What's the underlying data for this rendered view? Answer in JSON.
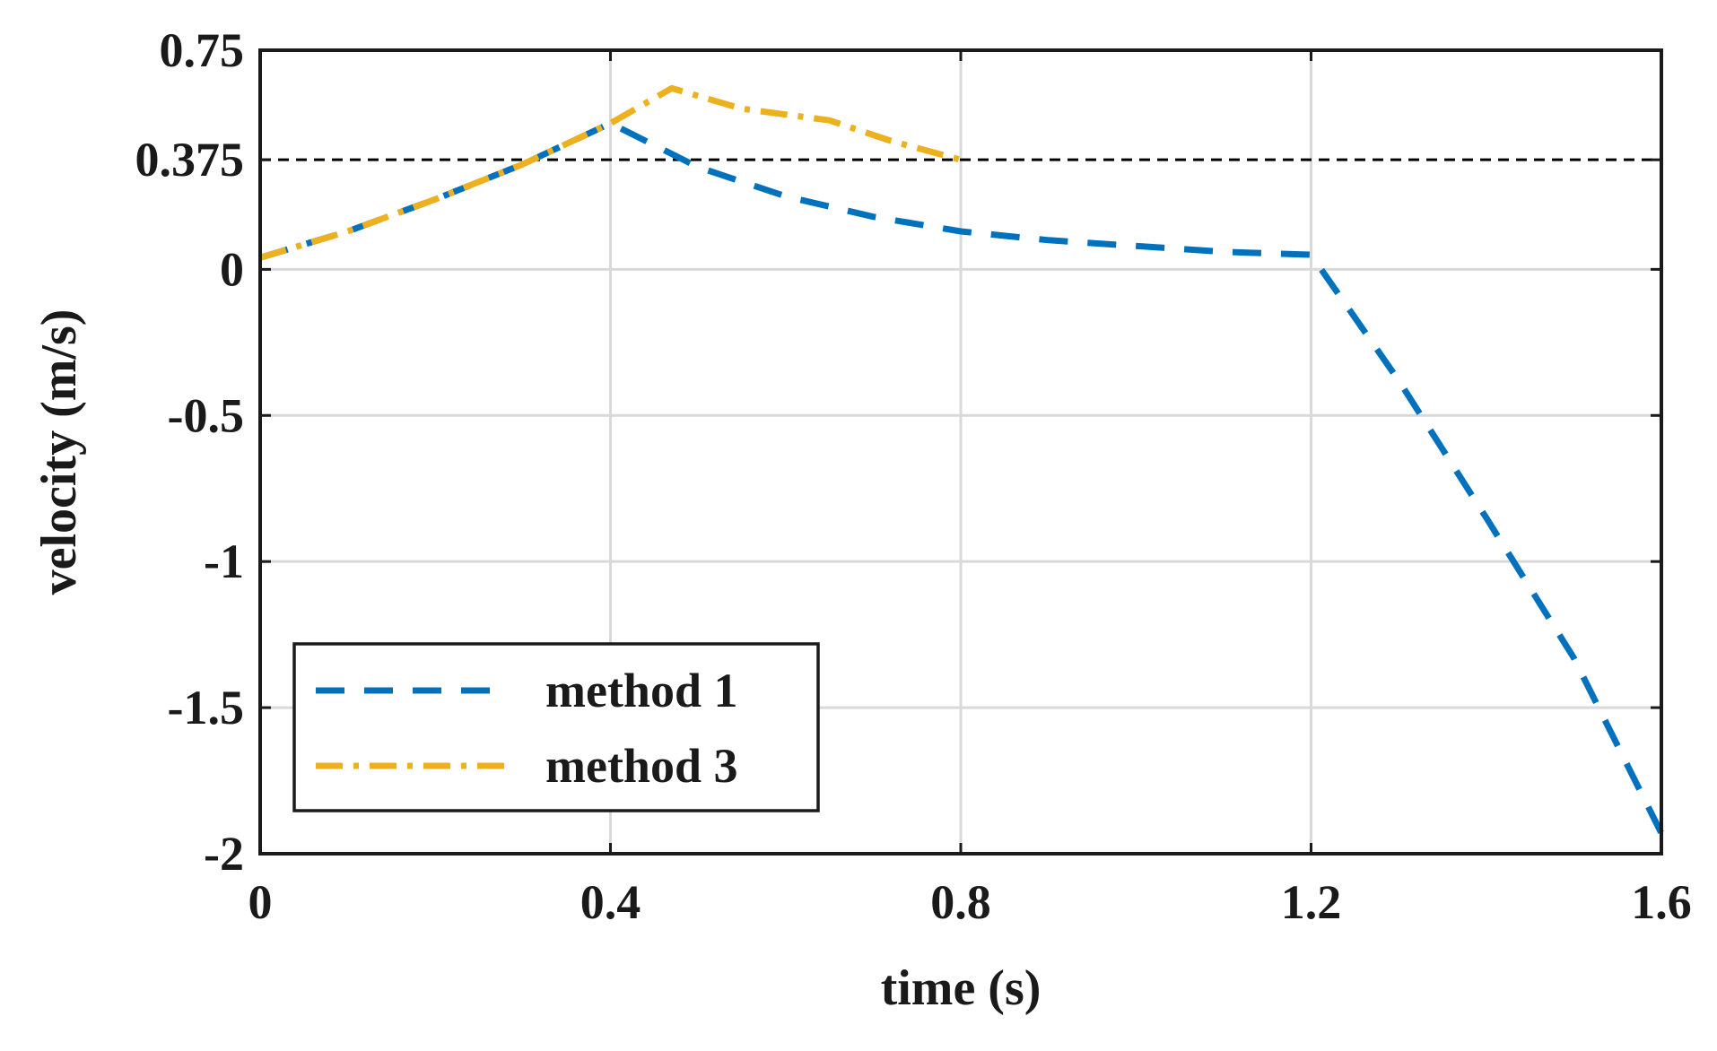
{
  "chart_data": {
    "type": "line",
    "title": "",
    "xlabel": "time (s)",
    "ylabel": "velocity (m/s)",
    "xlim": [
      0,
      1.6
    ],
    "ylim": [
      -2,
      0.75
    ],
    "xticks": [
      0,
      0.4,
      0.8,
      1.2,
      1.6
    ],
    "xtick_labels": [
      "0",
      "0.4",
      "0.8",
      "1.2",
      "1.6"
    ],
    "yticks": [
      0.75,
      0.375,
      0,
      -0.5,
      -1,
      -1.5,
      -2
    ],
    "ytick_labels": [
      "0.75",
      "0.375",
      "0",
      "-0.5",
      "-1",
      "-1.5",
      "-2"
    ],
    "grid": true,
    "reference_line": {
      "y": 0.375,
      "style": "dashed",
      "color": "#000000"
    },
    "legend_position": "bottom-left",
    "series": [
      {
        "name": "method 1",
        "color": "#0072BD",
        "style": "dashed",
        "x": [
          0,
          0.1,
          0.2,
          0.3,
          0.4,
          0.5,
          0.6,
          0.7,
          0.8,
          0.9,
          1.0,
          1.1,
          1.2,
          1.3,
          1.4,
          1.5,
          1.6
        ],
        "y": [
          0.04,
          0.13,
          0.24,
          0.36,
          0.5,
          0.35,
          0.25,
          0.18,
          0.13,
          0.1,
          0.08,
          0.06,
          0.05,
          -0.38,
          -0.85,
          -1.33,
          -1.93
        ]
      },
      {
        "name": "method 3",
        "color": "#EDB120",
        "style": "dashdot",
        "x": [
          0,
          0.1,
          0.2,
          0.3,
          0.4,
          0.47,
          0.55,
          0.65,
          0.72,
          0.8
        ],
        "y": [
          0.04,
          0.13,
          0.24,
          0.36,
          0.5,
          0.62,
          0.55,
          0.51,
          0.44,
          0.375
        ]
      }
    ]
  }
}
